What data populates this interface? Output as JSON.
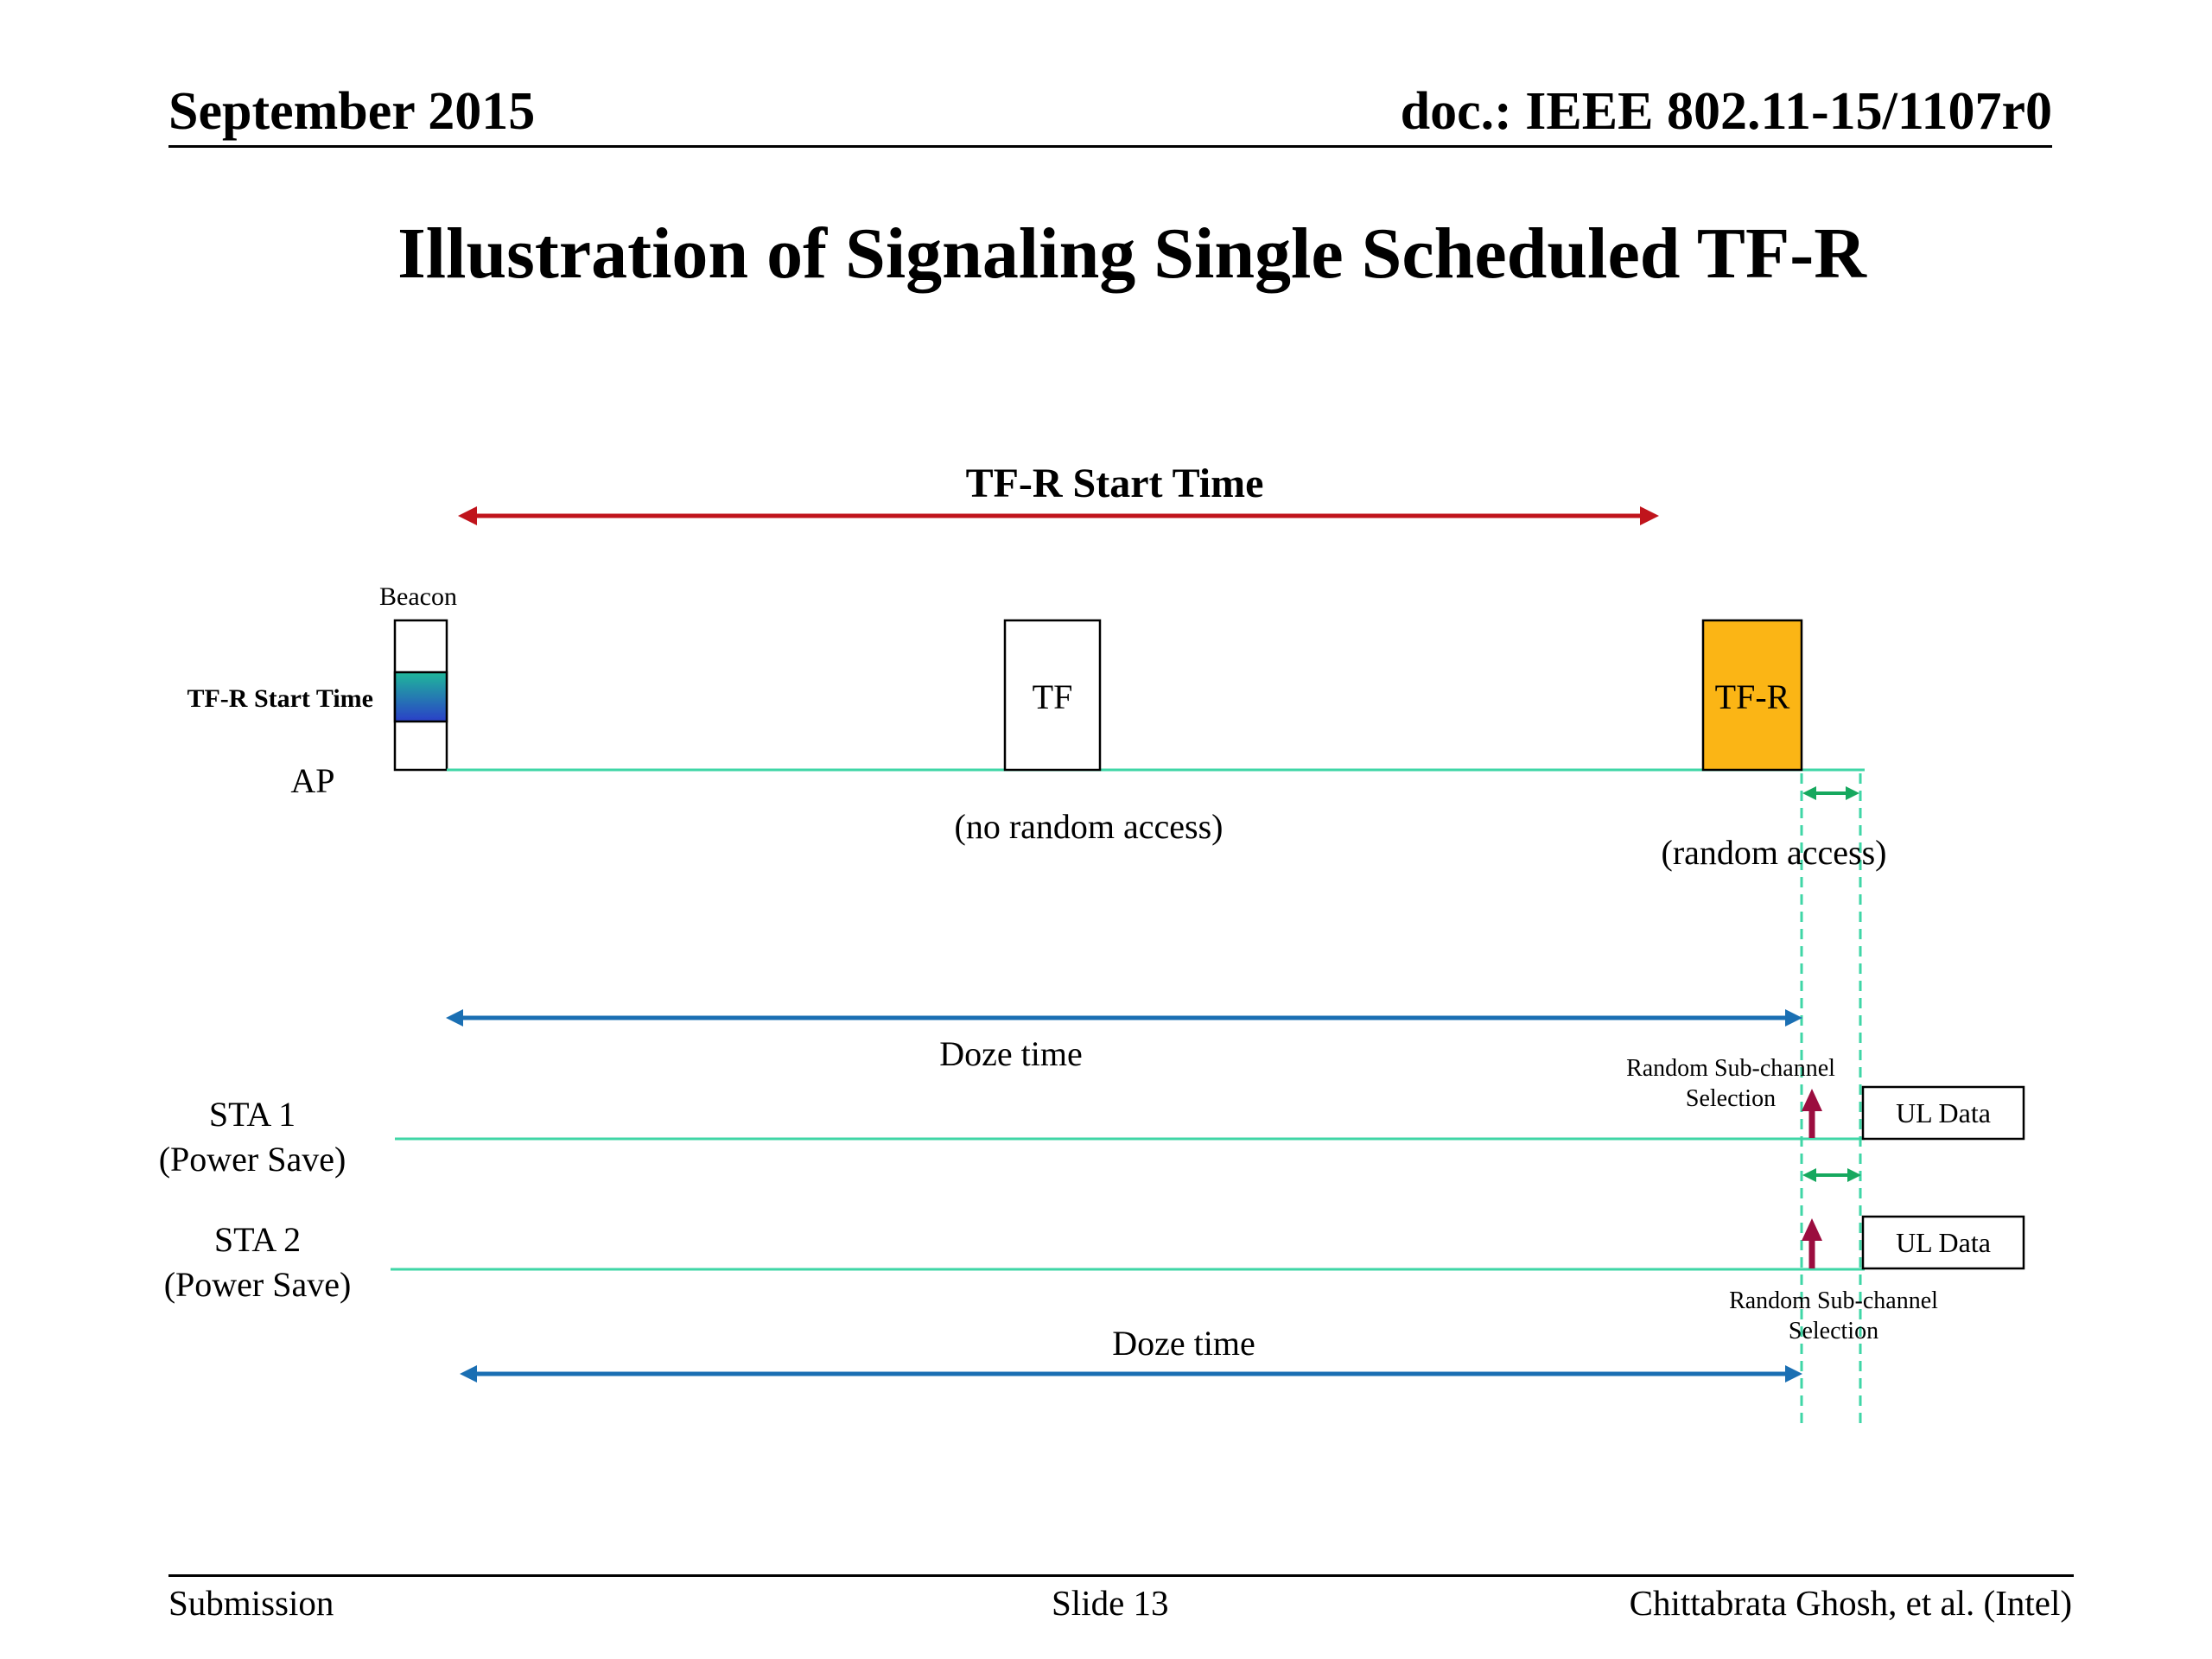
{
  "header": {
    "date": "September 2015",
    "doc": "doc.: IEEE 802.11-15/1107r0"
  },
  "slide_title": "Illustration of Signaling Single Scheduled TF-R",
  "diagram": {
    "tfr_start_arrow_label": "TF-R Start Time",
    "beacon_label": "Beacon",
    "beacon_field_label": "TF-R Start Time",
    "ap_label": "AP",
    "tf_label": "TF",
    "tf_note": "(no random access)",
    "tfr_label": "TF-R",
    "tfr_note": "(random access)",
    "doze_time_1": "Doze time",
    "doze_time_2": "Doze time",
    "sta1_name": "STA 1",
    "sta1_mode": "(Power Save)",
    "sta2_name": "STA 2",
    "sta2_mode": "(Power Save)",
    "rsc1_line1": "Random Sub-channel",
    "rsc1_line2": "Selection",
    "rsc2_line1": "Random Sub-channel",
    "rsc2_line2": "Selection",
    "ul_data_1": "UL Data",
    "ul_data_2": "UL Data"
  },
  "footer": {
    "left": "Submission",
    "center": "Slide 13",
    "right": "Chittabrata Ghosh, et al. (Intel)"
  },
  "colors": {
    "red_arrow": "#c0141c",
    "blue_arrow": "#1a6fb3",
    "timeline": "#3fd6a6",
    "green_arrow": "#16a85e",
    "tfr_fill": "#fbb515",
    "up_arrow": "#9b0d3f"
  }
}
